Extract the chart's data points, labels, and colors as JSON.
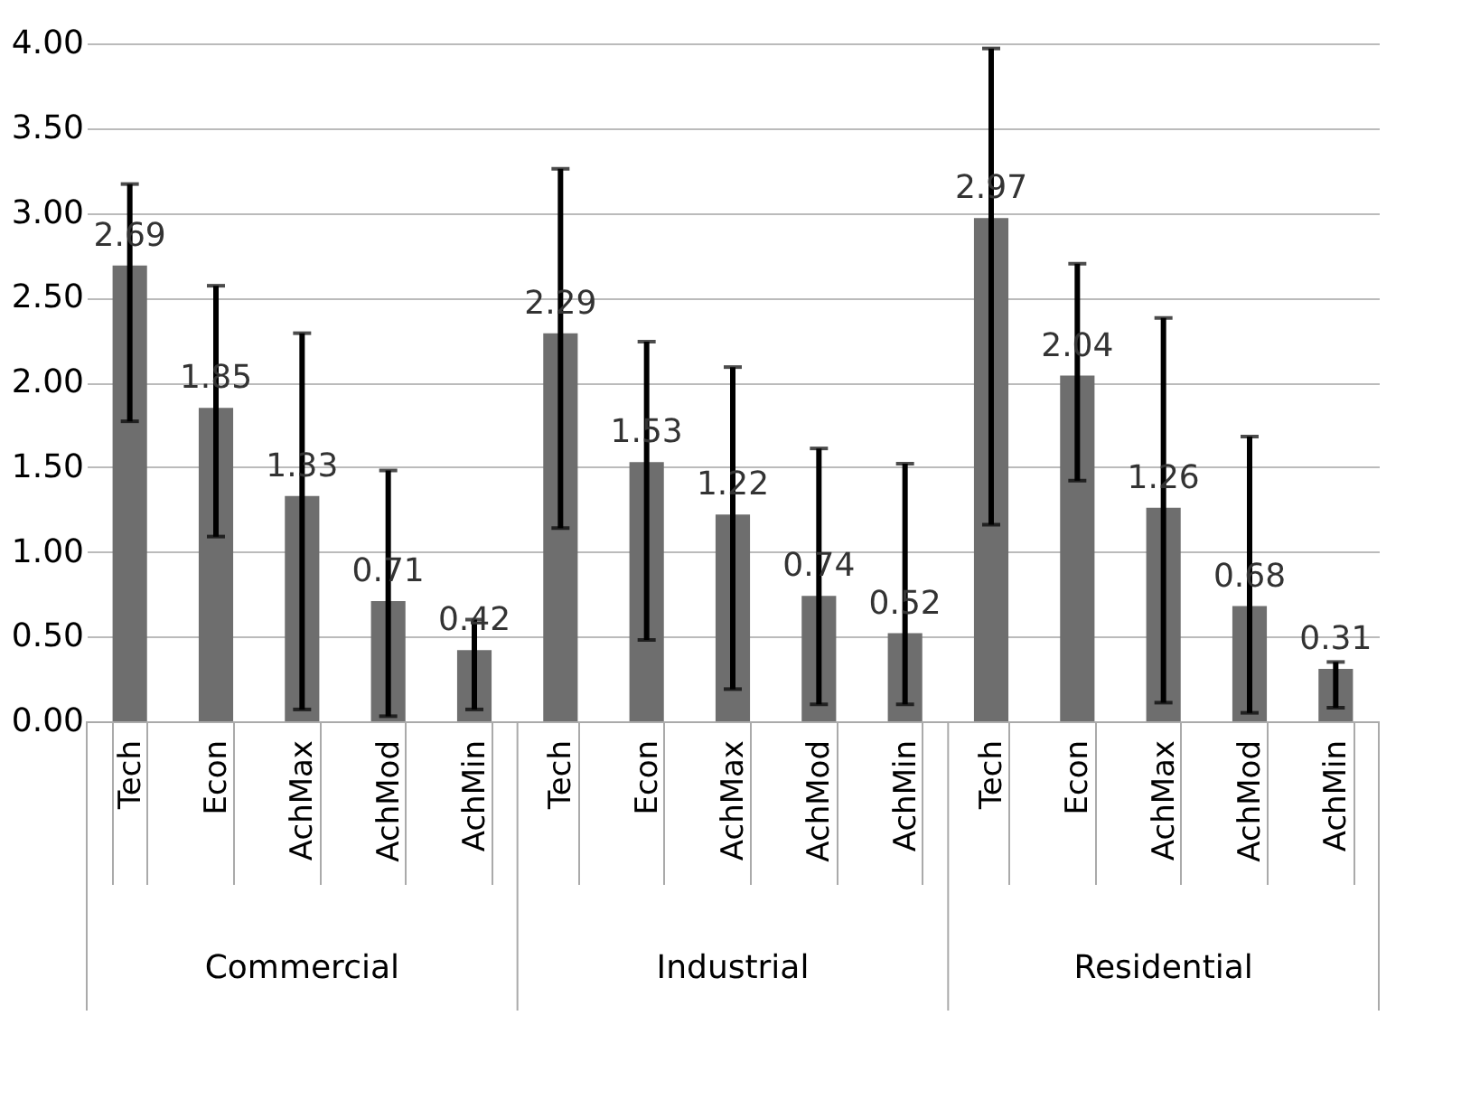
{
  "chart_data": {
    "type": "bar",
    "categories": [
      "Tech",
      "Econ",
      "AchMax",
      "AchMod",
      "AchMin",
      "Tech",
      "Econ",
      "AchMax",
      "AchMod",
      "AchMin",
      "Tech",
      "Econ",
      "AchMax",
      "AchMod",
      "AchMin"
    ],
    "values": [
      2.69,
      1.85,
      1.33,
      0.71,
      0.42,
      2.29,
      1.53,
      1.22,
      0.74,
      0.52,
      2.97,
      2.04,
      1.26,
      0.68,
      0.31
    ],
    "errors": [
      [
        1.77,
        3.17
      ],
      [
        1.09,
        2.57
      ],
      [
        0.07,
        2.29
      ],
      [
        0.03,
        1.48
      ],
      [
        0.07,
        0.6
      ],
      [
        1.14,
        3.26
      ],
      [
        0.48,
        2.24
      ],
      [
        0.19,
        2.09
      ],
      [
        0.1,
        1.61
      ],
      [
        0.1,
        1.52
      ],
      [
        1.16,
        3.97
      ],
      [
        1.42,
        2.7
      ],
      [
        0.11,
        2.38
      ],
      [
        0.05,
        1.68
      ],
      [
        0.08,
        0.35
      ]
    ],
    "color": "#6e6e6e",
    "data_labels": true,
    "annotations": [
      "Commercial",
      "Industrial",
      "Residential"
    ],
    "ylim": [
      0,
      4
    ],
    "yticks": [
      {
        "value": 0,
        "label": "0.00"
      },
      {
        "value": 0.5,
        "label": "0.50"
      },
      {
        "value": 1,
        "label": "1.00"
      },
      {
        "value": 1.5,
        "label": "1.50"
      },
      {
        "value": 2,
        "label": "2.00"
      },
      {
        "value": 2.5,
        "label": "2.50"
      },
      {
        "value": 3,
        "label": "3.00"
      },
      {
        "value": 3.5,
        "label": "3.50"
      },
      {
        "value": 4,
        "label": "4.00"
      }
    ],
    "grid": "y"
  }
}
